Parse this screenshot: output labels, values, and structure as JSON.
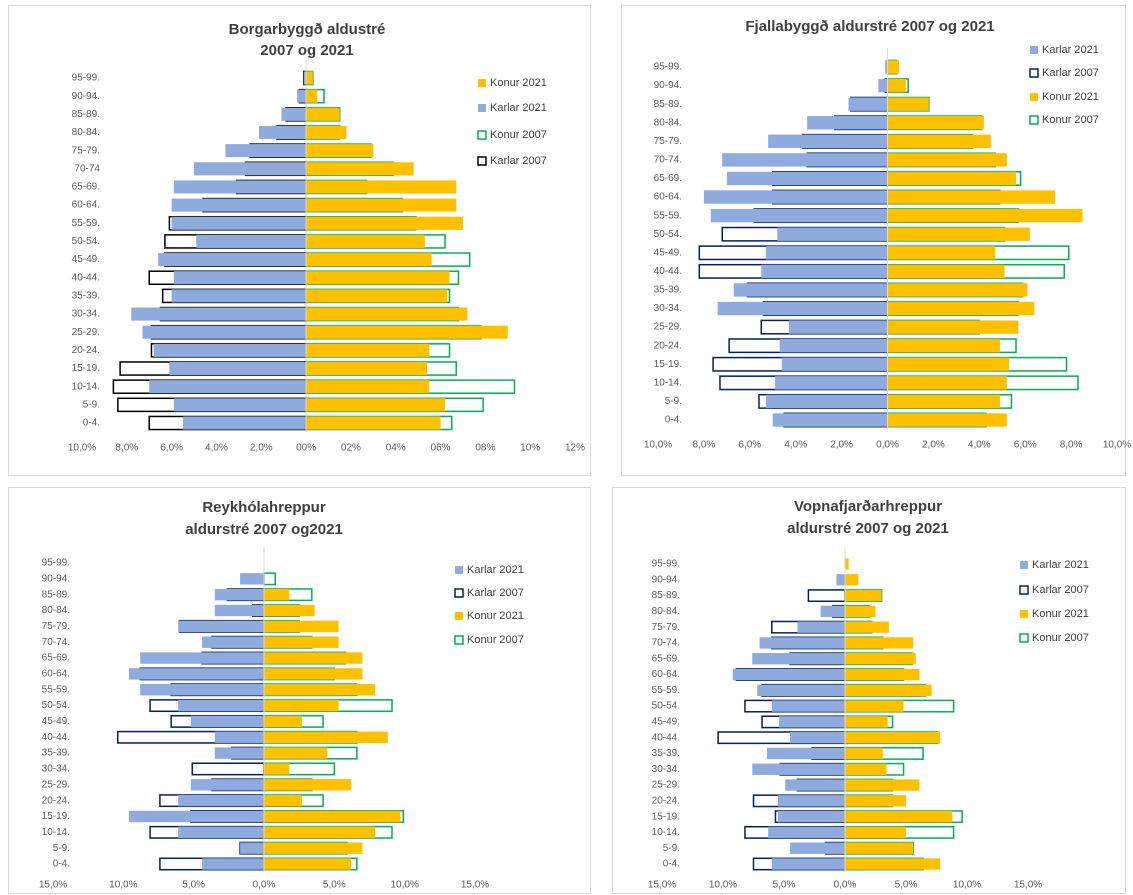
{
  "chart_data": [
    {
      "type": "bar",
      "orientation": "horizontal",
      "title": [
        "Borgarbyggð aldustré",
        "2007 og 2021"
      ],
      "categories": [
        "0-4.",
        "5-9.",
        "10-14.",
        "15-19.",
        "20-24.",
        "25-29.",
        "30-34.",
        "35-39.",
        "40-44.",
        "45-49.",
        "50-54.",
        "55-59.",
        "60-64.",
        "65-69.",
        "70-74",
        "75-79.",
        "80-84.",
        "85-89.",
        "90-94.",
        "95-99."
      ],
      "xlim": [
        -10,
        12
      ],
      "xticks": [
        {
          "value": -10,
          "label": "10,0%"
        },
        {
          "value": -8,
          "label": "8,0%"
        },
        {
          "value": -6,
          "label": "6,0%"
        },
        {
          "value": -4,
          "label": "4,0%"
        },
        {
          "value": -2,
          "label": "2,0%"
        },
        {
          "value": 0,
          "label": "00%"
        },
        {
          "value": 2,
          "label": "02%"
        },
        {
          "value": 4,
          "label": "04%"
        },
        {
          "value": 6,
          "label": "06%"
        },
        {
          "value": 8,
          "label": "08%"
        },
        {
          "value": 10,
          "label": "10%"
        },
        {
          "value": 12,
          "label": "12%"
        }
      ],
      "series": [
        {
          "name": "Konur 2021",
          "color": "#ffc000",
          "style": "fill",
          "values": [
            6.0,
            6.2,
            5.5,
            5.4,
            5.5,
            9.0,
            7.2,
            6.3,
            6.4,
            5.6,
            5.3,
            7.0,
            6.7,
            6.7,
            4.8,
            3.0,
            1.8,
            1.5,
            0.5,
            0.3
          ]
        },
        {
          "name": "Karlar 2021",
          "color": "#8faadc",
          "style": "fill",
          "values": [
            -5.5,
            -5.9,
            -7.0,
            -6.1,
            -6.8,
            -7.3,
            -7.8,
            -6.0,
            -5.9,
            -6.6,
            -4.9,
            -6.0,
            -6.0,
            -5.9,
            -5.0,
            -3.6,
            -2.1,
            -1.1,
            -0.4,
            -0.1
          ]
        },
        {
          "name": "Konur 2007",
          "color": "#00b050",
          "style": "outline",
          "values": [
            6.5,
            7.9,
            9.3,
            6.7,
            6.4,
            7.8,
            6.8,
            6.4,
            6.8,
            7.3,
            6.2,
            4.9,
            4.3,
            2.7,
            3.9,
            2.9,
            1.5,
            1.5,
            0.8,
            0.3
          ]
        },
        {
          "name": "Karlar 2007",
          "color": "#000000",
          "style": "outline",
          "values": [
            -7.0,
            -8.4,
            -8.6,
            -8.3,
            -6.9,
            -6.9,
            -6.5,
            -6.4,
            -7.0,
            -6.3,
            -6.3,
            -6.1,
            -4.6,
            -3.1,
            -2.7,
            -2.5,
            -1.3,
            -0.9,
            -0.3,
            -0.1
          ]
        }
      ]
    },
    {
      "type": "bar",
      "orientation": "horizontal",
      "title": [
        "Fjallabyggð aldurstré 2007 og 2021"
      ],
      "categories": [
        "0-4.",
        "5-9.",
        "10-14.",
        "15-19.",
        "20-24.",
        "25-29.",
        "30-34.",
        "35-39.",
        "40-44.",
        "45-49.",
        "50-54.",
        "55-59.",
        "60-64.",
        "65-69.",
        "70-74.",
        "75-79.",
        "80-84.",
        "85-89.",
        "90-94.",
        "95-99."
      ],
      "xlim": [
        -10,
        10
      ],
      "xticks": [
        {
          "value": -10,
          "label": "10,0%"
        },
        {
          "value": -8,
          "label": "8,0%"
        },
        {
          "value": -6,
          "label": "6,0%"
        },
        {
          "value": -4,
          "label": "4,0%"
        },
        {
          "value": -2,
          "label": "2,0%"
        },
        {
          "value": 0,
          "label": "0,0%"
        },
        {
          "value": 2,
          "label": "2,0%"
        },
        {
          "value": 4,
          "label": "4,0%"
        },
        {
          "value": 6,
          "label": "6,0%"
        },
        {
          "value": 8,
          "label": "8,0%"
        },
        {
          "value": 10,
          "label": "10,0%"
        }
      ],
      "series": [
        {
          "name": "Karlar 2021",
          "color": "#8faadc",
          "style": "fill",
          "values": [
            -5.0,
            -5.3,
            -4.9,
            -4.6,
            -4.7,
            -4.3,
            -7.4,
            -6.7,
            -5.5,
            -5.3,
            -4.8,
            -7.7,
            -8.0,
            -7.0,
            -7.2,
            -5.2,
            -3.5,
            -1.7,
            -0.4,
            -0.1
          ]
        },
        {
          "name": "Karlar 2007",
          "color": "#002060",
          "style": "outline",
          "values": [
            -4.5,
            -5.6,
            -7.3,
            -7.6,
            -6.9,
            -5.5,
            -5.4,
            -6.1,
            -8.2,
            -8.2,
            -7.2,
            -5.8,
            -5.0,
            -5.0,
            -3.5,
            -3.7,
            -2.3,
            -1.6,
            -0.1,
            0
          ]
        },
        {
          "name": "Konur 2021",
          "color": "#ffc000",
          "style": "fill",
          "values": [
            5.2,
            4.9,
            5.2,
            5.3,
            4.9,
            5.7,
            6.4,
            6.1,
            5.1,
            4.7,
            6.2,
            8.5,
            7.3,
            5.6,
            5.2,
            4.5,
            4.2,
            1.8,
            0.8,
            0.5
          ]
        },
        {
          "name": "Konur 2007",
          "color": "#00b050",
          "style": "outline",
          "values": [
            4.3,
            5.4,
            8.3,
            7.8,
            5.6,
            4.0,
            5.7,
            5.9,
            7.7,
            7.9,
            5.1,
            5.7,
            4.9,
            5.8,
            4.7,
            3.7,
            4.1,
            1.8,
            0.9,
            0.4
          ]
        }
      ]
    },
    {
      "type": "bar",
      "orientation": "horizontal",
      "title": [
        "Reykhólahreppur",
        "aldurstré 2007 og2021"
      ],
      "categories": [
        "0-4.",
        "5-9.",
        "10-14.",
        "15-19.",
        "20-24.",
        "25-29.",
        "30-34.",
        "35-39.",
        "40-44.",
        "45-49.",
        "50-54.",
        "55-59.",
        "60-64.",
        "65-69.",
        "70-74.",
        "75-79.",
        "80-84.",
        "85-89.",
        "90-94.",
        "95-99."
      ],
      "xlim": [
        -15,
        15
      ],
      "xticks": [
        {
          "value": -15,
          "label": "15,0%"
        },
        {
          "value": -10,
          "label": "10,0%"
        },
        {
          "value": -5,
          "label": "5,0%"
        },
        {
          "value": 0,
          "label": "0,0%"
        },
        {
          "value": 5,
          "label": "5,0%"
        },
        {
          "value": 10,
          "label": "10,0%"
        },
        {
          "value": 15,
          "label": "15,0%"
        }
      ],
      "series": [
        {
          "name": "Karlar 2021",
          "color": "#8faadc",
          "style": "fill",
          "values": [
            -4.4,
            -1.7,
            -6.1,
            -9.6,
            -6.1,
            -5.2,
            0,
            -3.5,
            -3.5,
            -5.2,
            -6.1,
            -8.8,
            -9.6,
            -8.8,
            -4.4,
            -6.1,
            -3.5,
            -3.5,
            -1.7,
            0
          ]
        },
        {
          "name": "Karlar 2007",
          "color": "#002060",
          "style": "outline",
          "values": [
            -7.4,
            -1.7,
            -8.1,
            -5.2,
            -7.4,
            -3.7,
            -5.1,
            -2.3,
            -10.4,
            -6.6,
            -8.1,
            -6.6,
            -8.8,
            -4.4,
            -3.7,
            -6.0,
            -0.8,
            -2.6,
            0,
            0
          ]
        },
        {
          "name": "Konur 2021",
          "color": "#ffc000",
          "style": "fill",
          "values": [
            6.2,
            7.0,
            7.9,
            9.7,
            2.7,
            6.2,
            1.8,
            4.5,
            8.8,
            2.7,
            5.3,
            7.9,
            7.0,
            7.0,
            5.3,
            5.3,
            3.6,
            1.8,
            0,
            0
          ]
        },
        {
          "name": "Konur 2007",
          "color": "#00b050",
          "style": "outline",
          "values": [
            6.6,
            5.9,
            9.1,
            9.9,
            4.2,
            3.4,
            5.0,
            6.6,
            6.6,
            4.2,
            9.1,
            6.6,
            5.0,
            5.8,
            3.4,
            2.5,
            2.5,
            3.4,
            0.8,
            0
          ]
        }
      ]
    },
    {
      "type": "bar",
      "orientation": "horizontal",
      "title": [
        "Vopnafjarðarhreppur",
        "aldurstré 2007 og 2021"
      ],
      "categories": [
        "0-4.",
        "5-9.",
        "10-14.",
        "15-19.",
        "20-24.",
        "25-29.",
        "30-34.",
        "35-39.",
        "40-44.",
        "45-49.",
        "50-54.",
        "55-59.",
        "60-64.",
        "65-69.",
        "70-74.",
        "75-79.",
        "80-84.",
        "85-89.",
        "90-94.",
        "95-99."
      ],
      "xlim": [
        -15,
        15
      ],
      "xticks": [
        {
          "value": -15,
          "label": "15,0%"
        },
        {
          "value": -10,
          "label": "10,0%"
        },
        {
          "value": -5,
          "label": "5,0%"
        },
        {
          "value": 0,
          "label": "0,0%"
        },
        {
          "value": 5,
          "label": "5,0%"
        },
        {
          "value": 10,
          "label": "10,0%"
        },
        {
          "value": 15,
          "label": "15,0%"
        }
      ],
      "series": [
        {
          "name": "Karlar 2021",
          "color": "#8faadc",
          "style": "fill",
          "values": [
            -6.0,
            -4.5,
            -6.3,
            -5.5,
            -5.5,
            -4.9,
            -7.6,
            -6.4,
            -4.5,
            -5.4,
            -6.0,
            -7.2,
            -9.2,
            -7.6,
            -7.0,
            -3.9,
            -2.0,
            0,
            -0.7,
            0
          ]
        },
        {
          "name": "Karlar 2007",
          "color": "#002060",
          "style": "outline",
          "values": [
            -7.5,
            -1.6,
            -8.2,
            -5.7,
            -7.5,
            -3.9,
            -5.3,
            -2.7,
            -10.4,
            -6.8,
            -8.2,
            -6.8,
            -8.9,
            -4.5,
            -6.0,
            -6.0,
            -1.0,
            -3.0,
            0,
            0
          ]
        },
        {
          "name": "Konur 2021",
          "color": "#ffc000",
          "style": "fill",
          "values": [
            7.8,
            5.6,
            5.0,
            8.8,
            5.0,
            6.1,
            3.4,
            3.1,
            7.8,
            3.5,
            4.8,
            7.1,
            6.1,
            5.8,
            5.6,
            3.6,
            2.5,
            3.0,
            1.1,
            0.3
          ]
        },
        {
          "name": "Konur 2007",
          "color": "#00b050",
          "style": "outline",
          "values": [
            6.4,
            5.6,
            8.9,
            9.6,
            3.9,
            3.9,
            4.8,
            6.4,
            7.6,
            3.9,
            8.9,
            6.6,
            4.8,
            5.5,
            3.1,
            2.2,
            2.0,
            3.0,
            0,
            0
          ]
        }
      ]
    }
  ]
}
